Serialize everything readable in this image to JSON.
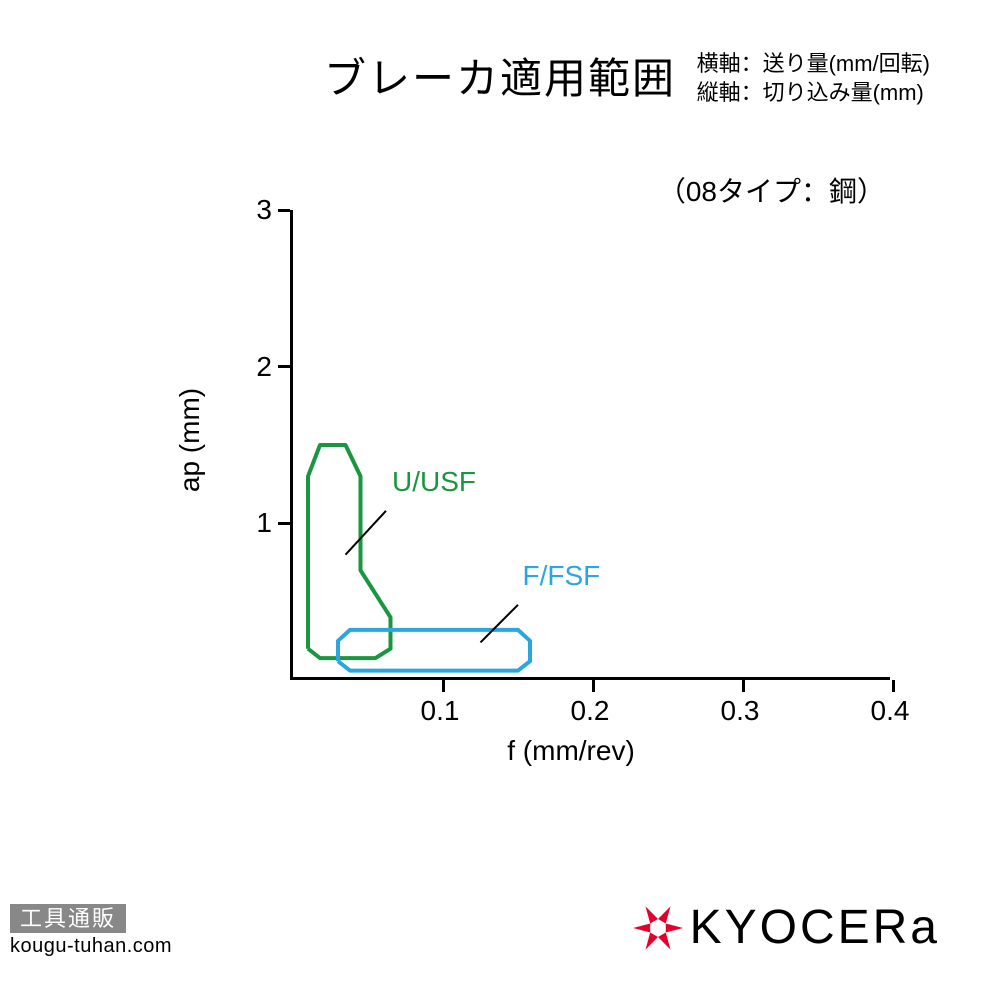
{
  "header": {
    "title": "ブレーカ適用範囲",
    "axis_desc_x": "横軸：送り量(mm/回転)",
    "axis_desc_y": "縦軸：切り込み量(mm)"
  },
  "chart": {
    "type": "region-outline",
    "subtitle": "（08タイプ：鋼）",
    "xlabel": "f (mm/rev)",
    "ylabel": "ap (mm)",
    "xlim": [
      0,
      0.4
    ],
    "ylim": [
      0,
      3
    ],
    "xticks": [
      0.1,
      0.2,
      0.3,
      0.4
    ],
    "yticks": [
      1,
      2,
      3
    ],
    "axis_color": "#000000",
    "background_color": "#ffffff",
    "tick_fontsize": 28,
    "label_fontsize": 28,
    "line_width": 4,
    "regions": [
      {
        "id": "u_usf",
        "label": "U/USF",
        "color": "#1a9641",
        "label_color": "#1a9641",
        "label_pos_f": 0.068,
        "label_pos_ap": 1.25,
        "leader_from_f": 0.062,
        "leader_from_ap": 1.08,
        "leader_to_f": 0.035,
        "leader_to_ap": 0.8,
        "path": [
          {
            "f": 0.01,
            "ap": 0.2
          },
          {
            "f": 0.01,
            "ap": 1.3
          },
          {
            "f": 0.018,
            "ap": 1.5
          },
          {
            "f": 0.035,
            "ap": 1.5
          },
          {
            "f": 0.045,
            "ap": 1.3
          },
          {
            "f": 0.045,
            "ap": 0.7
          },
          {
            "f": 0.065,
            "ap": 0.4
          },
          {
            "f": 0.065,
            "ap": 0.2
          },
          {
            "f": 0.055,
            "ap": 0.14
          },
          {
            "f": 0.018,
            "ap": 0.14
          },
          {
            "f": 0.01,
            "ap": 0.2
          }
        ]
      },
      {
        "id": "f_fsf",
        "label": "F/FSF",
        "color": "#2ba7df",
        "label_color": "#2ba7df",
        "label_pos_f": 0.155,
        "label_pos_ap": 0.65,
        "leader_from_f": 0.15,
        "leader_from_ap": 0.48,
        "leader_to_f": 0.125,
        "leader_to_ap": 0.24,
        "path": [
          {
            "f": 0.03,
            "ap": 0.12
          },
          {
            "f": 0.03,
            "ap": 0.25
          },
          {
            "f": 0.038,
            "ap": 0.32
          },
          {
            "f": 0.15,
            "ap": 0.32
          },
          {
            "f": 0.158,
            "ap": 0.25
          },
          {
            "f": 0.158,
            "ap": 0.12
          },
          {
            "f": 0.15,
            "ap": 0.06
          },
          {
            "f": 0.038,
            "ap": 0.06
          },
          {
            "f": 0.03,
            "ap": 0.12
          }
        ]
      }
    ]
  },
  "footer": {
    "tag": "工具通販",
    "url": "kougu-tuhan.com",
    "logo_text": "KYOCERа",
    "logo_color": "#e3002d"
  }
}
